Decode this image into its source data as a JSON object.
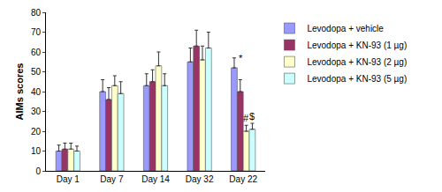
{
  "chart_data": {
    "type": "bar",
    "y_label": "AIMs scores",
    "categories": [
      "Day 1",
      "Day 7",
      "Day 14",
      "Day 32",
      "Day 22"
    ],
    "series": [
      {
        "name": "Levodopa + vehicle",
        "color": "#9999ff",
        "values": [
          10,
          40,
          43,
          55,
          52
        ],
        "errors": [
          3,
          6,
          6,
          7,
          5
        ]
      },
      {
        "name": "Levodopa + KN-93 (1 µg)",
        "color": "#993366",
        "values": [
          11,
          36,
          45,
          63,
          40
        ],
        "errors": [
          3,
          6,
          6,
          8,
          6
        ]
      },
      {
        "name": "Levodopa + KN-93 (2 µg)",
        "color": "#ffffcc",
        "values": [
          11,
          43,
          53,
          56,
          20
        ],
        "errors": [
          3,
          5,
          7,
          7,
          3
        ]
      },
      {
        "name": "Levodopa + KN-93 (5 µg)",
        "color": "#ccffff",
        "values": [
          10,
          39,
          43,
          62,
          21
        ],
        "errors": [
          2.5,
          6,
          6,
          8,
          3
        ]
      }
    ],
    "ylim": [
      0,
      80
    ],
    "yticks": [
      0,
      10,
      20,
      30,
      40,
      50,
      60,
      70,
      80
    ],
    "grid": false,
    "legend": "upper right",
    "annotations": [
      {
        "text": "*",
        "category": "Day 22",
        "series": "Levodopa + vehicle"
      },
      {
        "text": "#",
        "category": "Day 22",
        "series": "Levodopa + KN-93 (2 µg)"
      },
      {
        "text": "$",
        "category": "Day 22",
        "series": "Levodopa + KN-93 (5 µg)"
      }
    ]
  }
}
